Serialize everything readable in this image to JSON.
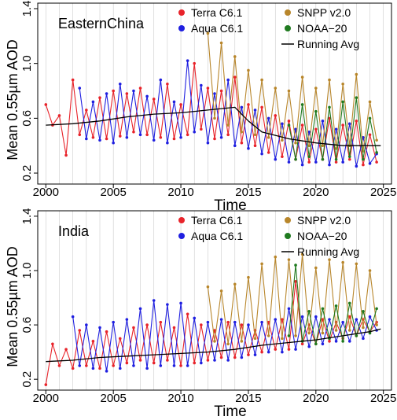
{
  "figure": {
    "background": "#ffffff",
    "colors": {
      "terra": "#e8232a",
      "aqua": "#1f1fe0",
      "snpp": "#b8862b",
      "noaa": "#1f7a1f",
      "avg": "#000000",
      "grid": "#cccccc"
    }
  },
  "chart_data": [
    {
      "type": "line",
      "title": "EasternChina",
      "xlabel": "Time",
      "ylabel": "Mean 0.55µm AOD",
      "xlim": [
        2000,
        2025
      ],
      "ylim": [
        0.2,
        1.4
      ],
      "xticks": [
        "2000",
        "2005",
        "2010",
        "2015",
        "2020",
        "2025"
      ],
      "yticks": [
        "0.2",
        "0.6",
        "1.0",
        "1.4"
      ],
      "grid": "vertical, yearly",
      "legend": [
        {
          "name": "Terra C6.1",
          "marker": "dot",
          "color": "#e8232a"
        },
        {
          "name": "Aqua C6.1",
          "marker": "dot",
          "color": "#1f1fe0"
        },
        {
          "name": "SNPP v2.0",
          "marker": "dot",
          "color": "#b8862b"
        },
        {
          "name": "NOAA−20",
          "marker": "dot",
          "color": "#1f7a1f"
        },
        {
          "name": "Running Avg",
          "marker": "line",
          "color": "#000000"
        }
      ],
      "series": [
        {
          "name": "Terra C6.1",
          "x": [
            2000.0,
            2000.5,
            2001.0,
            2001.5,
            2002.0,
            2002.5,
            2003.0,
            2003.5,
            2004.0,
            2004.5,
            2005.0,
            2005.5,
            2006.0,
            2006.5,
            2007.0,
            2007.5,
            2008.0,
            2008.5,
            2009.0,
            2009.5,
            2010.0,
            2010.5,
            2011.0,
            2011.5,
            2012.0,
            2012.5,
            2013.0,
            2013.5,
            2014.0,
            2014.5,
            2015.0,
            2015.5,
            2016.0,
            2016.5,
            2017.0,
            2017.5,
            2018.0,
            2018.5,
            2019.0,
            2019.5,
            2020.0,
            2020.5,
            2021.0,
            2021.5,
            2022.0,
            2022.5,
            2023.0,
            2023.5,
            2024.0,
            2024.5
          ],
          "y": [
            0.7,
            0.55,
            0.62,
            0.33,
            0.88,
            0.48,
            0.66,
            0.46,
            0.75,
            0.45,
            0.8,
            0.47,
            0.78,
            0.5,
            0.82,
            0.48,
            0.74,
            0.46,
            0.85,
            0.45,
            0.7,
            0.48,
            1.0,
            0.52,
            0.82,
            0.45,
            0.8,
            0.48,
            0.9,
            0.42,
            0.7,
            0.4,
            0.68,
            0.35,
            0.62,
            0.32,
            0.58,
            0.3,
            0.55,
            0.28,
            0.52,
            0.3,
            0.6,
            0.28,
            0.55,
            0.3,
            0.58,
            0.26,
            0.48,
            0.28
          ]
        },
        {
          "name": "Aqua C6.1",
          "x": [
            2002.5,
            2003.0,
            2003.5,
            2004.0,
            2004.5,
            2005.0,
            2005.5,
            2006.0,
            2006.5,
            2007.0,
            2007.5,
            2008.0,
            2008.5,
            2009.0,
            2009.5,
            2010.0,
            2010.5,
            2011.0,
            2011.5,
            2012.0,
            2012.5,
            2013.0,
            2013.5,
            2014.0,
            2014.5,
            2015.0,
            2015.5,
            2016.0,
            2016.5,
            2017.0,
            2017.5,
            2018.0,
            2018.5,
            2019.0,
            2019.5,
            2020.0,
            2020.5,
            2021.0,
            2021.5,
            2022.0,
            2022.5,
            2023.0,
            2023.5,
            2024.0,
            2024.5
          ],
          "y": [
            0.82,
            0.45,
            0.72,
            0.44,
            0.78,
            0.42,
            0.85,
            0.46,
            0.8,
            0.48,
            0.76,
            0.44,
            0.88,
            0.42,
            0.72,
            0.46,
            1.02,
            0.5,
            0.84,
            0.42,
            0.78,
            0.46,
            0.88,
            0.4,
            0.68,
            0.38,
            0.66,
            0.34,
            0.6,
            0.3,
            0.56,
            0.28,
            0.52,
            0.26,
            0.5,
            0.28,
            0.58,
            0.26,
            0.52,
            0.28,
            0.56,
            0.25,
            0.46,
            0.27,
            0.34
          ]
        },
        {
          "name": "SNPP v2.0",
          "x": [
            2012.0,
            2012.5,
            2013.0,
            2013.5,
            2014.0,
            2014.5,
            2015.0,
            2015.5,
            2016.0,
            2016.5,
            2017.0,
            2017.5,
            2018.0,
            2018.5,
            2019.0,
            2019.5,
            2020.0,
            2020.5,
            2021.0,
            2021.5,
            2022.0,
            2022.5,
            2023.0,
            2023.5,
            2024.0,
            2024.5
          ],
          "y": [
            1.22,
            0.6,
            1.15,
            0.55,
            1.05,
            0.5,
            0.95,
            0.48,
            0.88,
            0.46,
            0.82,
            0.44,
            0.8,
            0.42,
            0.9,
            0.4,
            0.82,
            0.4,
            0.88,
            0.38,
            0.85,
            0.4,
            0.92,
            0.36,
            0.72,
            0.44
          ]
        },
        {
          "name": "NOAA−20",
          "x": [
            2018.0,
            2018.5,
            2019.0,
            2019.5,
            2020.0,
            2020.5,
            2021.0,
            2021.5,
            2022.0,
            2022.5,
            2023.0,
            2023.5,
            2024.0,
            2024.5
          ],
          "y": [
            0.55,
            0.3,
            0.7,
            0.32,
            0.65,
            0.3,
            0.68,
            0.3,
            0.72,
            0.32,
            0.75,
            0.3,
            0.6,
            0.35
          ]
        },
        {
          "name": "Running Avg",
          "x": [
            2000.0,
            2002.0,
            2004.0,
            2006.0,
            2008.0,
            2010.0,
            2012.0,
            2014.0,
            2015.0,
            2016.0,
            2018.0,
            2020.0,
            2022.0,
            2024.0,
            2024.8
          ],
          "y": [
            0.55,
            0.56,
            0.58,
            0.61,
            0.63,
            0.64,
            0.66,
            0.68,
            0.58,
            0.5,
            0.45,
            0.42,
            0.4,
            0.4,
            0.4
          ]
        }
      ]
    },
    {
      "type": "line",
      "title": "India",
      "xlabel": "Time",
      "ylabel": "Mean 0.55µm AOD",
      "xlim": [
        2000,
        2025
      ],
      "ylim": [
        0.2,
        1.4
      ],
      "xticks": [
        "2000",
        "2005",
        "2010",
        "2015",
        "2020",
        "2025"
      ],
      "yticks": [
        "0.2",
        "0.6",
        "1.0",
        "1.4"
      ],
      "grid": "vertical, yearly",
      "legend": [
        {
          "name": "Terra C6.1",
          "marker": "dot",
          "color": "#e8232a"
        },
        {
          "name": "Aqua C6.1",
          "marker": "dot",
          "color": "#1f1fe0"
        },
        {
          "name": "SNPP v2.0",
          "marker": "dot",
          "color": "#b8862b"
        },
        {
          "name": "NOAA−20",
          "marker": "dot",
          "color": "#1f7a1f"
        },
        {
          "name": "Running Avg",
          "marker": "line",
          "color": "#000000"
        }
      ],
      "series": [
        {
          "name": "Terra C6.1",
          "x": [
            2000.0,
            2000.5,
            2001.0,
            2001.5,
            2002.0,
            2002.5,
            2003.0,
            2003.5,
            2004.0,
            2004.5,
            2005.0,
            2005.5,
            2006.0,
            2006.5,
            2007.0,
            2007.5,
            2008.0,
            2008.5,
            2009.0,
            2009.5,
            2010.0,
            2010.5,
            2011.0,
            2011.5,
            2012.0,
            2012.5,
            2013.0,
            2013.5,
            2014.0,
            2014.5,
            2015.0,
            2015.5,
            2016.0,
            2016.5,
            2017.0,
            2017.5,
            2018.0,
            2018.5,
            2019.0,
            2019.5,
            2020.0,
            2020.5,
            2021.0,
            2021.5,
            2022.0,
            2022.5,
            2023.0,
            2023.5,
            2024.0,
            2024.5
          ],
          "y": [
            0.16,
            0.46,
            0.3,
            0.42,
            0.28,
            0.56,
            0.3,
            0.48,
            0.28,
            0.55,
            0.3,
            0.5,
            0.32,
            0.58,
            0.34,
            0.6,
            0.32,
            0.62,
            0.34,
            0.58,
            0.3,
            0.68,
            0.32,
            0.6,
            0.34,
            0.56,
            0.36,
            0.62,
            0.36,
            0.6,
            0.38,
            0.56,
            0.4,
            0.62,
            0.42,
            0.64,
            0.42,
            0.92,
            0.46,
            0.6,
            0.46,
            0.64,
            0.48,
            0.62,
            0.5,
            0.66,
            0.52,
            0.64,
            0.55,
            0.62
          ]
        },
        {
          "name": "Aqua C6.1",
          "x": [
            2002.0,
            2002.5,
            2003.0,
            2003.5,
            2004.0,
            2004.5,
            2005.0,
            2005.5,
            2006.0,
            2006.5,
            2007.0,
            2007.5,
            2008.0,
            2008.5,
            2009.0,
            2009.5,
            2010.0,
            2010.5,
            2011.0,
            2011.5,
            2012.0,
            2012.5,
            2013.0,
            2013.5,
            2014.0,
            2014.5,
            2015.0,
            2015.5,
            2016.0,
            2016.5,
            2017.0,
            2017.5,
            2018.0,
            2018.5,
            2019.0,
            2019.5,
            2020.0,
            2020.5,
            2021.0,
            2021.5,
            2022.0,
            2022.5,
            2023.0,
            2023.5,
            2024.0,
            2024.5
          ],
          "y": [
            0.66,
            0.3,
            0.6,
            0.28,
            0.58,
            0.26,
            0.62,
            0.28,
            0.64,
            0.3,
            0.72,
            0.28,
            0.78,
            0.3,
            0.75,
            0.3,
            0.76,
            0.3,
            0.65,
            0.32,
            0.62,
            0.34,
            0.64,
            0.34,
            0.62,
            0.36,
            0.6,
            0.38,
            0.62,
            0.4,
            0.64,
            0.4,
            0.72,
            0.42,
            0.66,
            0.44,
            0.66,
            0.46,
            0.64,
            0.48,
            0.62,
            0.48,
            0.64,
            0.5,
            0.66,
            0.56
          ]
        },
        {
          "name": "SNPP v2.0",
          "x": [
            2012.0,
            2012.5,
            2013.0,
            2013.5,
            2014.0,
            2014.5,
            2015.0,
            2015.5,
            2016.0,
            2016.5,
            2017.0,
            2017.5,
            2018.0,
            2018.5,
            2019.0,
            2019.5,
            2020.0,
            2020.5,
            2021.0,
            2021.5,
            2022.0,
            2022.5,
            2023.0,
            2023.5,
            2024.0,
            2024.5
          ],
          "y": [
            0.88,
            0.48,
            0.85,
            0.46,
            0.9,
            0.48,
            0.95,
            0.5,
            1.05,
            0.52,
            1.1,
            0.5,
            1.08,
            0.52,
            1.12,
            0.54,
            1.02,
            0.54,
            1.08,
            0.56,
            1.06,
            0.56,
            1.05,
            0.58,
            1.0,
            0.6
          ]
        },
        {
          "name": "NOAA−20",
          "x": [
            2018.0,
            2018.5,
            2019.0,
            2019.5,
            2020.0,
            2020.5,
            2021.0,
            2021.5,
            2022.0,
            2022.5,
            2023.0,
            2023.5,
            2024.0,
            2024.5
          ],
          "y": [
            0.52,
            1.04,
            0.48,
            0.7,
            0.46,
            0.72,
            0.5,
            0.74,
            0.48,
            0.76,
            0.52,
            0.7,
            0.54,
            0.72
          ]
        },
        {
          "name": "Running Avg",
          "x": [
            2000.0,
            2002.0,
            2004.0,
            2006.0,
            2008.0,
            2010.0,
            2012.0,
            2014.0,
            2016.0,
            2018.0,
            2020.0,
            2022.0,
            2024.0,
            2024.8
          ],
          "y": [
            0.33,
            0.34,
            0.36,
            0.37,
            0.38,
            0.39,
            0.4,
            0.42,
            0.45,
            0.47,
            0.49,
            0.52,
            0.55,
            0.57
          ]
        }
      ]
    }
  ]
}
